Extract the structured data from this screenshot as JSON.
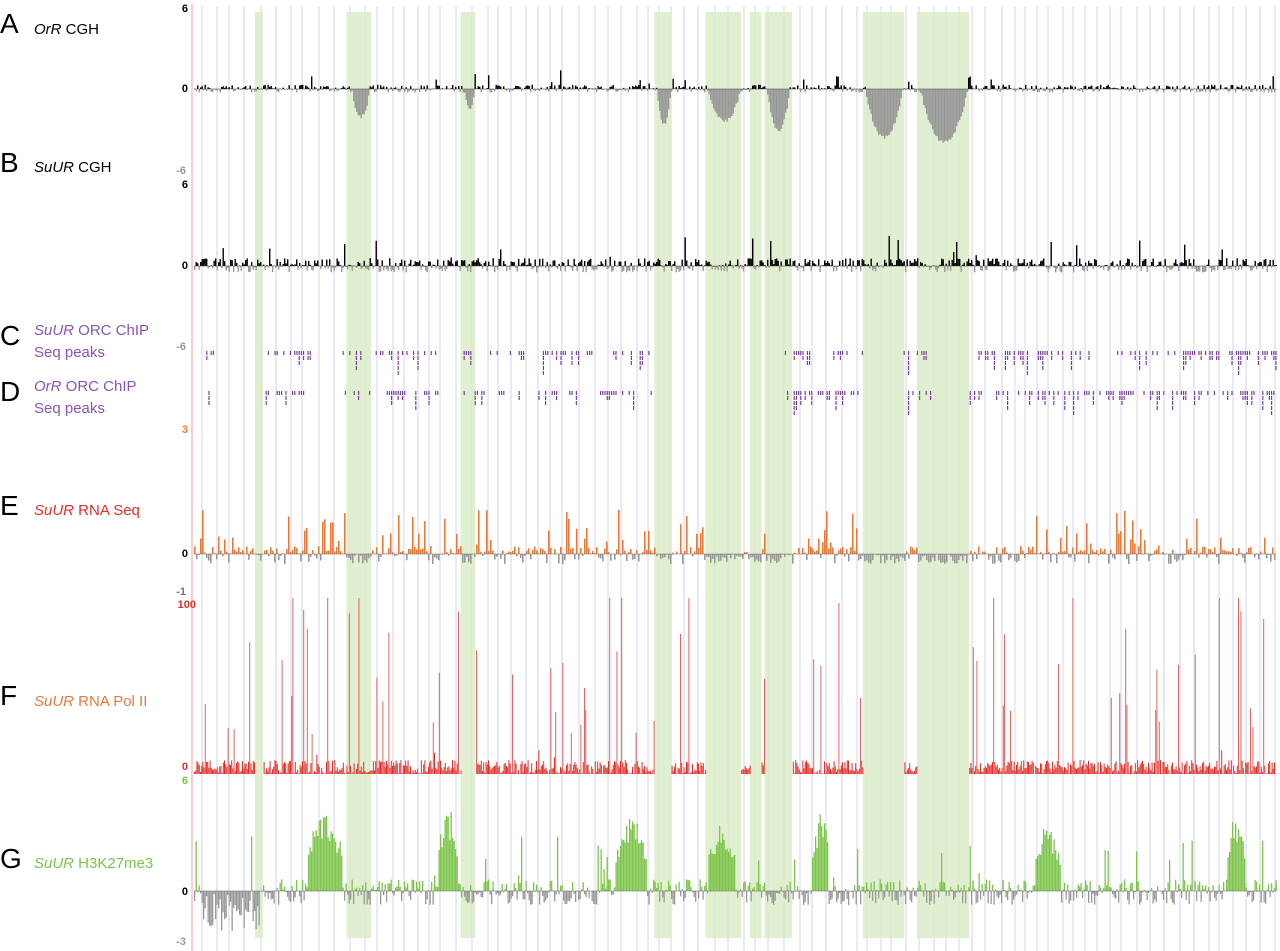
{
  "tracks": [
    {
      "id": "A",
      "letter": "A",
      "label_italic": "OrR",
      "label_rest": " CGH",
      "color": "#000000",
      "neg_color": "#999999",
      "ymax": "6",
      "yzero": "0",
      "ymin": "-6",
      "tick_color": "#000000",
      "min_tick_color": "#999999"
    },
    {
      "id": "B",
      "letter": "B",
      "label_italic": "SuUR",
      "label_rest": " CGH",
      "color": "#000000",
      "neg_color": "#999999",
      "ymax": "6",
      "yzero": "0",
      "ymin": "-6",
      "tick_color": "#000000",
      "min_tick_color": "#999999"
    },
    {
      "id": "C",
      "letter": "C",
      "label_italic": "SuUR",
      "label_rest": " ORC ChIP",
      "label_line2": "Seq peaks",
      "color": "#7b3fa0"
    },
    {
      "id": "D",
      "letter": "D",
      "label_italic": "OrR",
      "label_rest": " ORC ChIP",
      "label_line2": "Seq peaks",
      "color": "#7b3fa0"
    },
    {
      "id": "E",
      "letter": "E",
      "label_italic": "SuUR",
      "label_rest": " RNA Seq",
      "color": "#e87a3a",
      "neg_color": "#999999",
      "label_color": "#e0302a",
      "ymax": "3",
      "yzero": "0",
      "ymin": "-1",
      "tick_color": "#e87a3a",
      "min_tick_color": "#777777"
    },
    {
      "id": "F",
      "letter": "F",
      "label_italic": "SuUR",
      "label_rest": " RNA Pol II",
      "color": "#e0302a",
      "label_color": "#e87a3a",
      "ymax": "100",
      "yzero": "0",
      "tick_color": "#e0302a"
    },
    {
      "id": "G",
      "letter": "G",
      "label_italic": "SuUR",
      "label_rest": " H3K27me3",
      "color": "#7cc44a",
      "neg_color": "#999999",
      "ymax": "6",
      "yzero": "0",
      "ymin": "-3",
      "tick_color": "#7cc44a",
      "min_tick_color": "#999999"
    }
  ],
  "colors": {
    "highlight": "#dbecc8",
    "gridline": "#c8c8ee",
    "left_axis": "#f0a0a0"
  },
  "highlight_regions_kb": [
    [
      62,
      70
    ],
    [
      155,
      180
    ],
    [
      271,
      286
    ],
    [
      468,
      485
    ],
    [
      520,
      556
    ],
    [
      565,
      577
    ],
    [
      580,
      608
    ],
    [
      680,
      722
    ],
    [
      735,
      788
    ]
  ],
  "underrep_dips_kb": [
    [
      160,
      178,
      2.0
    ],
    [
      274,
      285,
      1.3
    ],
    [
      470,
      484,
      2.6
    ],
    [
      522,
      555,
      2.3
    ],
    [
      582,
      605,
      3.0
    ],
    [
      682,
      720,
      3.6
    ],
    [
      738,
      786,
      3.9
    ]
  ],
  "pol2_gaps_kb": [
    [
      62,
      70
    ],
    [
      271,
      286
    ],
    [
      468,
      485
    ],
    [
      520,
      556
    ],
    [
      565,
      577
    ],
    [
      580,
      608
    ],
    [
      680,
      722
    ],
    [
      735,
      788
    ]
  ],
  "k27_domains_kb": [
    [
      115,
      150,
      4.4
    ],
    [
      248,
      268,
      4.5
    ],
    [
      428,
      460,
      4.4
    ],
    [
      522,
      550,
      3.6
    ],
    [
      628,
      645,
      4.2
    ],
    [
      855,
      880,
      3.6
    ],
    [
      1050,
      1068,
      4.3
    ]
  ]
}
